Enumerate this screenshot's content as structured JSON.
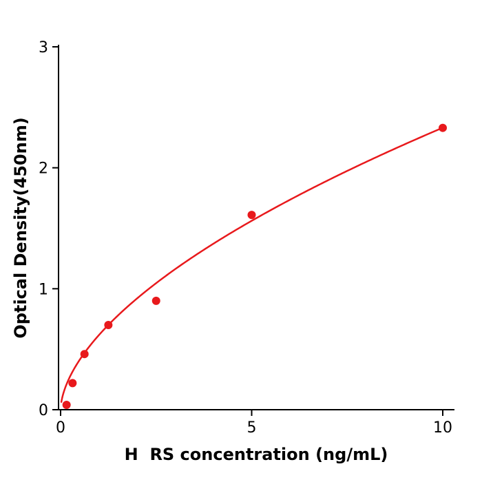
{
  "figure": {
    "background": "#ffffff"
  },
  "chart_data": {
    "type": "scatter",
    "title": "",
    "xlabel": "H  RS concentration (ng/mL)",
    "ylabel": "Optical Density(450nm)",
    "x": [
      0.156,
      0.313,
      0.625,
      1.25,
      2.5,
      5,
      10
    ],
    "y": [
      0.04,
      0.22,
      0.46,
      0.7,
      0.9,
      1.61,
      2.33
    ],
    "xlim": [
      0,
      10.3
    ],
    "ylim": [
      0,
      3
    ],
    "xticks": [
      0,
      5,
      10
    ],
    "yticks": [
      0,
      1,
      2,
      3
    ],
    "grid": false,
    "legend": null,
    "point_color": "#e8191c",
    "curve_color": "#e8191c",
    "axis_color": "#000000",
    "marker_radius": 6,
    "fit_curve": {
      "type": "power",
      "a": 0.616,
      "b": 0.578,
      "x_start": 0.02,
      "x_end": 10
    }
  }
}
